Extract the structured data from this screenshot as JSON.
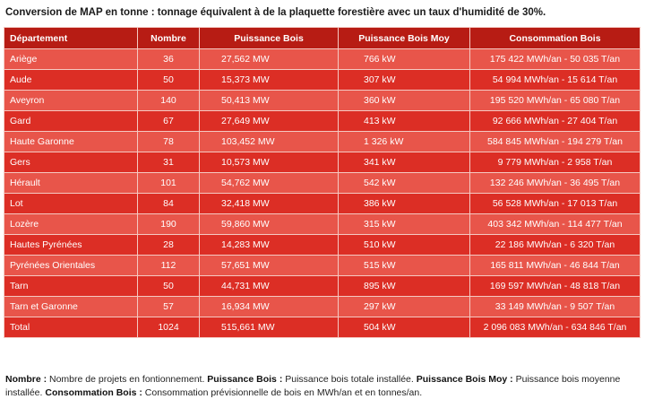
{
  "caption": "Conversion de MAP en tonne : tonnage équivalent à de la plaquette forestière avec un taux d'humidité de 30%.",
  "table": {
    "headers": [
      "Département",
      "Nombre",
      "Puissance Bois",
      "Puissance Bois Moy",
      "Consommation Bois"
    ],
    "rows": [
      [
        "Ariège",
        "36",
        "27,562 MW",
        "766 kW",
        "175 422 MWh/an - 50 035 T/an"
      ],
      [
        "Aude",
        "50",
        "15,373 MW",
        "307 kW",
        "54 994 MWh/an - 15 614 T/an"
      ],
      [
        "Aveyron",
        "140",
        "50,413 MW",
        "360 kW",
        "195 520 MWh/an - 65 080 T/an"
      ],
      [
        "Gard",
        "67",
        "27,649 MW",
        "413 kW",
        "92 666 MWh/an - 27 404 T/an"
      ],
      [
        "Haute Garonne",
        "78",
        "103,452 MW",
        "1 326 kW",
        "584 845 MWh/an - 194 279 T/an"
      ],
      [
        "Gers",
        "31",
        "10,573 MW",
        "341 kW",
        "9 779 MWh/an - 2 958 T/an"
      ],
      [
        "Hérault",
        "101",
        "54,762 MW",
        "542 kW",
        "132 246 MWh/an - 36 495 T/an"
      ],
      [
        "Lot",
        "84",
        "32,418 MW",
        "386 kW",
        "56 528 MWh/an - 17 013 T/an"
      ],
      [
        "Lozère",
        "190",
        "59,860 MW",
        "315 kW",
        "403 342 MWh/an - 114 477 T/an"
      ],
      [
        "Hautes Pyrénées",
        "28",
        "14,283 MW",
        "510 kW",
        "22 186 MWh/an - 6 320 T/an"
      ],
      [
        "Pyrénées Orientales",
        "112",
        "57,651 MW",
        "515 kW",
        "165 811 MWh/an - 46 844 T/an"
      ],
      [
        "Tarn",
        "50",
        "44,731 MW",
        "895 kW",
        "169 597 MWh/an - 48 818 T/an"
      ],
      [
        "Tarn et Garonne",
        "57",
        "16,934 MW",
        "297 kW",
        "33 149 MWh/an - 9 507 T/an"
      ]
    ],
    "total": [
      "Total",
      "1024",
      "515,661 MW",
      "504 kW",
      "2 096 083 MWh/an - 634 846 T/an"
    ]
  },
  "notes": {
    "nombre_term": "Nombre :",
    "nombre_text": " Nombre de projets en fontionnement. ",
    "puissance_term": "Puissance Bois :",
    "puissance_text": " Puissance bois totale installée. ",
    "moy_term": "Puissance Bois Moy :",
    "moy_text": " Puissance bois moyenne installée. ",
    "conso_term": "Consommation Bois :",
    "conso_text": " Consommation prévisionnelle de bois en MWh/an et en tonnes/an."
  },
  "colors": {
    "header_bg": "#b71c14",
    "row_light": "#e8554a",
    "row_dark": "#dc2e25"
  }
}
